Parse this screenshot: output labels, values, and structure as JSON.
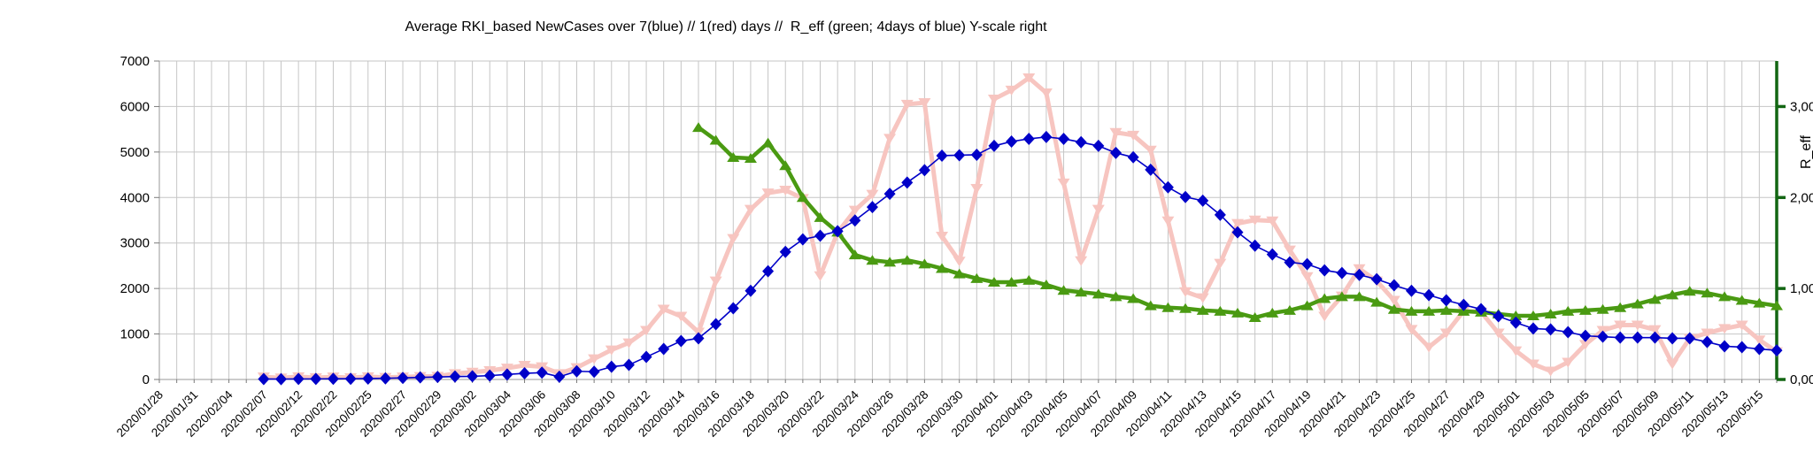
{
  "title": "Average RKI_based NewCases over 7(blue) // 1(red) days //  R_eff (green; 4days of blue) Y-scale right",
  "colors": {
    "daily_pink": "#f7c5c0",
    "avg_blue": "#0000c8",
    "reff_green": "#4a9a12",
    "right_axis_green": "#136613",
    "grid": "#c6c6c6",
    "axis_gray": "#9a9a9a",
    "tick_gray": "#7a7a7a",
    "text": "#000000"
  },
  "chart_data": {
    "type": "line",
    "n_positions": 94,
    "tick_label_every": 2,
    "left_axis": {
      "min": 0,
      "max": 7000,
      "step": 1000,
      "tick_labels": [
        "0",
        "1000",
        "2000",
        "3000",
        "4000",
        "5000",
        "6000",
        "7000"
      ]
    },
    "right_axis": {
      "title": "R_eff",
      "min": 0,
      "max": 3.5,
      "step": 1,
      "tick_labels": [
        "0,00",
        "1,00",
        "2,00",
        "3,00"
      ]
    },
    "categories": [
      "2020/01/28",
      "",
      "2020/01/31",
      "",
      "2020/02/04",
      "",
      "2020/02/07",
      "",
      "2020/02/12",
      "",
      "2020/02/22",
      "",
      "2020/02/25",
      "",
      "2020/02/27",
      "",
      "2020/02/29",
      "",
      "2020/03/02",
      "",
      "2020/03/04",
      "",
      "2020/03/06",
      "",
      "2020/03/08",
      "",
      "2020/03/10",
      "",
      "2020/03/12",
      "",
      "2020/03/14",
      "",
      "2020/03/16",
      "",
      "2020/03/18",
      "",
      "2020/03/20",
      "",
      "2020/03/22",
      "",
      "2020/03/24",
      "",
      "2020/03/26",
      "",
      "2020/03/28",
      "",
      "2020/03/30",
      "",
      "2020/04/01",
      "",
      "2020/04/03",
      "",
      "2020/04/05",
      "",
      "2020/04/07",
      "",
      "2020/04/09",
      "",
      "2020/04/11",
      "",
      "2020/04/13",
      "",
      "2020/04/15",
      "",
      "2020/04/17",
      "",
      "2020/04/19",
      "",
      "2020/04/21",
      "",
      "2020/04/23",
      "",
      "2020/04/25",
      "",
      "2020/04/27",
      "",
      "2020/04/29",
      "",
      "2020/05/01",
      "",
      "2020/05/03",
      "",
      "2020/05/05",
      "",
      "2020/05/07",
      "",
      "2020/05/09",
      "",
      "2020/05/11",
      "",
      "2020/05/13",
      "",
      "2020/05/15",
      ""
    ],
    "series": [
      {
        "name": "NewCases averaged over 1 day (daily)",
        "axis": "left",
        "marker": "triangle-down",
        "line_width": 5,
        "values": [
          null,
          null,
          null,
          null,
          null,
          null,
          55,
          35,
          60,
          40,
          55,
          40,
          60,
          45,
          55,
          65,
          70,
          130,
          160,
          195,
          250,
          310,
          280,
          130,
          260,
          455,
          650,
          805,
          1080,
          1545,
          1390,
          1040,
          2165,
          3100,
          3740,
          4100,
          4160,
          3980,
          2280,
          3230,
          3720,
          4070,
          5300,
          6050,
          6085,
          3150,
          2600,
          4200,
          6165,
          6360,
          6630,
          6300,
          4320,
          2610,
          3740,
          5430,
          5370,
          5040,
          3485,
          1930,
          1795,
          2555,
          3430,
          3505,
          3485,
          2845,
          2260,
          1390,
          1835,
          2435,
          2165,
          1740,
          1100,
          710,
          1020,
          1505,
          1485,
          1020,
          630,
          340,
          185,
          380,
          770,
          1080,
          1195,
          1195,
          1095,
          340,
          905,
          1020,
          1120,
          1195,
          870,
          610
        ]
      },
      {
        "name": "NewCases averaged over 7 days",
        "axis": "left",
        "marker": "diamond",
        "line_width": 1.6,
        "values": [
          null,
          null,
          null,
          null,
          null,
          null,
          10,
          8,
          12,
          12,
          15,
          15,
          20,
          25,
          35,
          45,
          55,
          65,
          70,
          85,
          110,
          135,
          150,
          60,
          180,
          170,
          280,
          320,
          495,
          670,
          845,
          905,
          1215,
          1565,
          1950,
          2380,
          2805,
          3080,
          3160,
          3260,
          3495,
          3790,
          4080,
          4330,
          4600,
          4920,
          4930,
          4940,
          5135,
          5230,
          5290,
          5330,
          5290,
          5215,
          5135,
          4980,
          4885,
          4610,
          4225,
          4010,
          3930,
          3620,
          3235,
          2940,
          2750,
          2575,
          2535,
          2400,
          2340,
          2300,
          2205,
          2070,
          1950,
          1855,
          1740,
          1640,
          1545,
          1390,
          1250,
          1120,
          1100,
          1040,
          960,
          940,
          920,
          920,
          920,
          905,
          905,
          825,
          730,
          710,
          670,
          640
        ]
      },
      {
        "name": "R_eff (4 days of blue)",
        "axis": "right",
        "marker": "triangle-up",
        "line_width": 4.5,
        "values": [
          null,
          null,
          null,
          null,
          null,
          null,
          null,
          null,
          null,
          null,
          null,
          null,
          null,
          null,
          null,
          null,
          null,
          null,
          null,
          null,
          null,
          null,
          null,
          null,
          null,
          null,
          null,
          null,
          null,
          null,
          null,
          2.77,
          2.63,
          2.44,
          2.43,
          2.6,
          2.35,
          2.0,
          1.78,
          1.62,
          1.37,
          1.31,
          1.29,
          1.31,
          1.27,
          1.22,
          1.16,
          1.11,
          1.07,
          1.07,
          1.09,
          1.04,
          0.98,
          0.96,
          0.94,
          0.91,
          0.89,
          0.81,
          0.79,
          0.78,
          0.76,
          0.75,
          0.73,
          0.68,
          0.73,
          0.76,
          0.81,
          0.89,
          0.91,
          0.91,
          0.85,
          0.77,
          0.75,
          0.75,
          0.76,
          0.75,
          0.74,
          0.72,
          0.7,
          0.7,
          0.72,
          0.75,
          0.76,
          0.77,
          0.79,
          0.83,
          0.88,
          0.93,
          0.97,
          0.95,
          0.91,
          0.87,
          0.84,
          0.81
        ]
      }
    ]
  }
}
